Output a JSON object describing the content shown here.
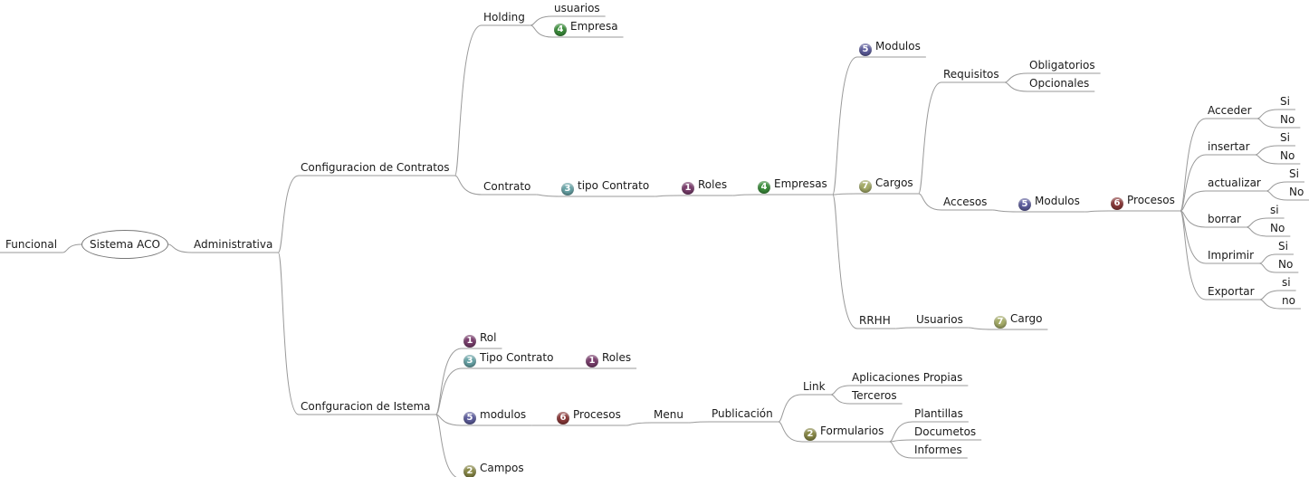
{
  "badge_colors": {
    "1": "#7b3f6e",
    "2": "#8a8a48",
    "3": "#6aa6a9",
    "4": "#3d8f3d",
    "5": "#5f5f9f",
    "6": "#8c3a3a",
    "7": "#a7ae6a"
  },
  "root": {
    "label": "Sistema ACO"
  },
  "nodes": {
    "funcional": "Funcional",
    "administrativa": "Administrativa",
    "config_contratos": "Configuracion de Contratos",
    "holding": "Holding",
    "usuarios_h": "usuarios",
    "empresa_h": "Empresa",
    "contrato": "Contrato",
    "tipo_contrato": "tipo Contrato",
    "roles": "Roles",
    "empresas": "Empresas",
    "modulos_top": "Modulos",
    "cargos": "Cargos",
    "requisitos": "Requisitos",
    "obligatorios": "Obligatorios",
    "opcionales": "Opcionales",
    "accesos": "Accesos",
    "modulos_acc": "Modulos",
    "procesos_acc": "Procesos",
    "acceder": "Acceder",
    "acceder_si": "Si",
    "acceder_no": "No",
    "insertar": "insertar",
    "insertar_si": "Si",
    "insertar_no": "No",
    "actualizar": "actualizar",
    "actualizar_si": "Si",
    "actualizar_no": "No",
    "borrar": "borrar",
    "borrar_si": "si",
    "borrar_no": "No",
    "imprimir": "Imprimir",
    "imprimir_si": "Si",
    "imprimir_no": "No",
    "exportar": "Exportar",
    "exportar_si": "si",
    "exportar_no": "no",
    "rrhh": "RRHH",
    "usuarios_r": "Usuarios",
    "cargo_r": "Cargo",
    "config_sistema": "Confguracion de Istema",
    "rol": "Rol",
    "tipo_contrato2": "Tipo Contrato",
    "roles2": "Roles",
    "modulos2": "modulos",
    "procesos2": "Procesos",
    "menu": "Menu",
    "publicacion": "Publicación",
    "link": "Link",
    "aplicaciones": "Aplicaciones Propias",
    "terceros": "Terceros",
    "formularios": "Formularios",
    "plantillas": "Plantillas",
    "documetos": "Documetos",
    "informes": "Informes",
    "campos": "Campos"
  }
}
